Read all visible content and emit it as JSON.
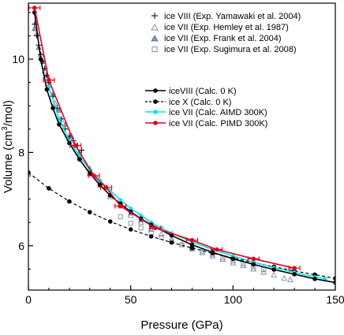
{
  "chart_data": {
    "type": "scatter",
    "xlabel": "Pressure (GPa)",
    "ylabel": "Volume (cm³/mol)",
    "ylabel_parts": {
      "pre": "Volume (cm",
      "sup": "3",
      "post": "/mol)"
    },
    "xlim": [
      0,
      150
    ],
    "ylim": [
      5.05,
      11.2
    ],
    "x_ticks": [
      0,
      50,
      100,
      150
    ],
    "y_ticks": [
      6,
      8,
      10
    ],
    "x_tick_labels": [
      "0",
      "50",
      "100",
      "150"
    ],
    "y_tick_labels": [
      "6",
      "8",
      "10"
    ],
    "legend_experimental": [
      "ice VIII (Exp. Yamawaki et al. 2004)",
      "ice VII (Exp. Hemley et al. 1987)",
      "ice VII (Exp. Frank et al. 2004)",
      "ice VII (Exp. Sugimura et al. 2008)"
    ],
    "legend_calculated": [
      "iceVIII (Calc. 0 K)",
      "ice X (Calc. 0 K)",
      "ice VII (Calc. AIMD 300K)",
      "ice VII (Calc. PIMD 300K)"
    ],
    "series": [
      {
        "name": "ice VIII (Exp. Yamawaki et al. 2004)",
        "marker": "plus",
        "color": "#000000",
        "x": [
          3,
          4,
          5,
          6,
          7,
          8,
          9,
          10,
          12,
          14,
          16,
          18,
          20,
          22,
          24,
          26
        ],
        "y": [
          10.75,
          10.5,
          10.3,
          10.1,
          9.95,
          9.8,
          9.65,
          9.5,
          9.2,
          8.95,
          8.72,
          8.5,
          8.35,
          8.25,
          8.15,
          8.05
        ]
      },
      {
        "name": "ice VII (Exp. Hemley et al. 1987)",
        "marker": "triangle-open",
        "color": "#7a8fa8",
        "x": [
          4,
          6,
          8,
          10,
          13,
          16,
          20,
          25,
          30,
          35,
          40,
          45,
          50,
          55,
          60,
          65,
          70,
          75,
          80,
          85,
          90,
          95,
          100,
          105,
          110,
          115,
          120,
          125,
          128
        ],
        "y": [
          10.55,
          10.1,
          9.75,
          9.45,
          9.05,
          8.7,
          8.3,
          7.9,
          7.55,
          7.3,
          7.05,
          6.85,
          6.65,
          6.5,
          6.35,
          6.25,
          6.12,
          6.02,
          5.93,
          5.85,
          5.78,
          5.71,
          5.63,
          5.57,
          5.5,
          5.43,
          5.37,
          5.3,
          5.27
        ]
      },
      {
        "name": "ice VII (Exp. Frank et al. 2004)",
        "marker": "triangle-filled",
        "color": "#8898b0",
        "x": [
          3,
          5,
          7,
          9,
          12,
          15,
          18,
          21,
          25,
          30,
          35,
          40,
          45,
          50,
          55,
          60
        ],
        "y": [
          10.65,
          10.25,
          9.95,
          9.65,
          9.25,
          8.9,
          8.6,
          8.35,
          8.0,
          7.65,
          7.35,
          7.1,
          6.9,
          6.7,
          6.55,
          6.4
        ]
      },
      {
        "name": "ice VII (Exp. Sugimura et al. 2008)",
        "marker": "square-open",
        "color": "#8090a0",
        "x": [
          45,
          50,
          55,
          60,
          65,
          70,
          75,
          80,
          85,
          90,
          95,
          100,
          105,
          110,
          115
        ],
        "y": [
          6.62,
          6.48,
          6.38,
          6.28,
          6.18,
          6.1,
          6.02,
          5.95,
          5.88,
          5.81,
          5.74,
          5.67,
          5.61,
          5.55,
          5.49
        ]
      },
      {
        "name": "iceVIII (Calc. 0 K)",
        "marker": "circle-filled",
        "line": "solid",
        "color": "#000000",
        "x": [
          3,
          6,
          9,
          12,
          15,
          20,
          25,
          30,
          35,
          40,
          45,
          50,
          55,
          60,
          70,
          80,
          90,
          100,
          110,
          120,
          130,
          140,
          150
        ],
        "y": [
          11.0,
          10.0,
          9.35,
          8.95,
          8.6,
          8.2,
          7.85,
          7.55,
          7.3,
          7.08,
          6.9,
          6.73,
          6.58,
          6.45,
          6.22,
          6.02,
          5.86,
          5.72,
          5.6,
          5.49,
          5.39,
          5.29,
          5.21
        ]
      },
      {
        "name": "ice X (Calc. 0 K)",
        "marker": "circle-filled",
        "line": "dashed",
        "color": "#000000",
        "x": [
          0,
          10,
          20,
          30,
          40,
          50,
          60,
          70,
          80,
          90,
          100,
          110,
          120,
          130,
          140,
          150
        ],
        "y": [
          7.57,
          7.23,
          6.95,
          6.72,
          6.52,
          6.35,
          6.2,
          6.07,
          5.95,
          5.84,
          5.74,
          5.64,
          5.55,
          5.46,
          5.38,
          5.3
        ]
      },
      {
        "name": "ice VII (Calc. AIMD 300K)",
        "marker": "circle-filled",
        "line": "solid",
        "color": "#00e5ee",
        "x": [
          10,
          15,
          20,
          25,
          30,
          35,
          40,
          45,
          50,
          55,
          60,
          65,
          70,
          80,
          90,
          100,
          110,
          120,
          130,
          140,
          145
        ],
        "y": [
          9.4,
          8.72,
          8.25,
          7.92,
          7.63,
          7.4,
          7.18,
          6.98,
          6.8,
          6.65,
          6.5,
          6.38,
          6.27,
          6.08,
          5.92,
          5.78,
          5.65,
          5.53,
          5.43,
          5.33,
          5.29
        ]
      },
      {
        "name": "ice VII (Calc. PIMD 300K)",
        "marker": "circle-filled",
        "line": "solid",
        "color": "#e8001c",
        "x": [
          3,
          10,
          23,
          32,
          38,
          45,
          62,
          80,
          92,
          110,
          130
        ],
        "y": [
          11.1,
          9.55,
          8.15,
          7.5,
          7.25,
          6.85,
          6.38,
          6.12,
          5.92,
          5.72,
          5.52
        ]
      }
    ]
  }
}
